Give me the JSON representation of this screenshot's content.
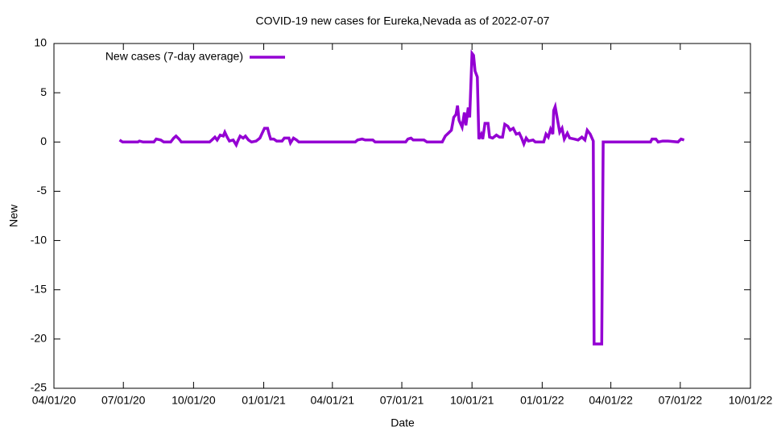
{
  "chart_data": {
    "type": "line",
    "title": "COVID-19 new cases for Eureka,Nevada as of 2022-07-07",
    "xlabel": "Date",
    "ylabel": "New",
    "legend": "top-left",
    "x": [
      "2020-06-26",
      "2020-06-30",
      "2020-07-20",
      "2020-07-22",
      "2020-07-27",
      "2020-08-10",
      "2020-08-13",
      "2020-08-19",
      "2020-08-23",
      "2020-09-01",
      "2020-09-05",
      "2020-09-08",
      "2020-09-12",
      "2020-09-15",
      "2020-10-22",
      "2020-10-25",
      "2020-10-29",
      "2020-11-01",
      "2020-11-05",
      "2020-11-09",
      "2020-11-11",
      "2020-11-14",
      "2020-11-17",
      "2020-11-22",
      "2020-11-26",
      "2020-11-28",
      "2020-12-01",
      "2020-12-05",
      "2020-12-08",
      "2020-12-12",
      "2020-12-16",
      "2020-12-22",
      "2020-12-27",
      "2020-12-30",
      "2021-01-02",
      "2021-01-06",
      "2021-01-08",
      "2021-01-10",
      "2021-01-14",
      "2021-01-18",
      "2021-01-25",
      "2021-01-28",
      "2021-02-03",
      "2021-02-05",
      "2021-02-09",
      "2021-02-13",
      "2021-02-16",
      "2021-05-01",
      "2021-05-04",
      "2021-05-10",
      "2021-05-14",
      "2021-05-24",
      "2021-05-27",
      "2021-07-06",
      "2021-07-09",
      "2021-07-13",
      "2021-07-16",
      "2021-07-30",
      "2021-08-03",
      "2021-08-23",
      "2021-08-27",
      "2021-08-31",
      "2021-09-04",
      "2021-09-07",
      "2021-09-10",
      "2021-09-12",
      "2021-09-14",
      "2021-09-18",
      "2021-09-21",
      "2021-09-23",
      "2021-09-26",
      "2021-09-28",
      "2021-10-01",
      "2021-10-03",
      "2021-10-05",
      "2021-10-08",
      "2021-10-10",
      "2021-10-13",
      "2021-10-15",
      "2021-10-18",
      "2021-10-22",
      "2021-10-24",
      "2021-10-28",
      "2021-11-02",
      "2021-11-06",
      "2021-11-10",
      "2021-11-13",
      "2021-11-17",
      "2021-11-20",
      "2021-11-24",
      "2021-11-28",
      "2021-12-02",
      "2021-12-05",
      "2021-12-08",
      "2021-12-11",
      "2021-12-14",
      "2021-12-20",
      "2021-12-23",
      "2022-01-03",
      "2022-01-06",
      "2022-01-09",
      "2022-01-12",
      "2022-01-15",
      "2022-01-16",
      "2022-01-18",
      "2022-01-21",
      "2022-01-24",
      "2022-01-27",
      "2022-01-30",
      "2022-02-03",
      "2022-02-06",
      "2022-02-12",
      "2022-02-17",
      "2022-02-22",
      "2022-02-26",
      "2022-03-01",
      "2022-03-05",
      "2022-03-09",
      "2022-03-10",
      "2022-03-20",
      "2022-03-22",
      "2022-05-23",
      "2022-05-25",
      "2022-05-30",
      "2022-06-02",
      "2022-06-08",
      "2022-06-15",
      "2022-06-28",
      "2022-07-02",
      "2022-07-06"
    ],
    "series": [
      {
        "name": "New cases (7-day average)",
        "color": "#9400d3",
        "values": [
          0.2,
          0,
          0,
          0.1,
          0,
          0,
          0.3,
          0.2,
          0,
          0,
          0.4,
          0.6,
          0.3,
          0,
          0,
          0.2,
          0.5,
          0.2,
          0.7,
          0.6,
          1.0,
          0.5,
          0.1,
          0.2,
          -0.3,
          0.1,
          0.6,
          0.4,
          0.6,
          0.2,
          0,
          0.1,
          0.4,
          0.9,
          1.4,
          1.4,
          0.8,
          0.3,
          0.3,
          0.1,
          0.1,
          0.4,
          0.4,
          -0.1,
          0.4,
          0.2,
          0,
          0,
          0.2,
          0.3,
          0.2,
          0.2,
          0,
          0,
          0.3,
          0.4,
          0.2,
          0.2,
          0,
          0,
          0.6,
          0.9,
          1.2,
          2.5,
          2.8,
          3.7,
          2.2,
          1.5,
          3.0,
          1.7,
          3.5,
          2.5,
          9.0,
          8.8,
          7.2,
          6.6,
          0.3,
          0.8,
          0.3,
          1.9,
          1.9,
          0.5,
          0.4,
          0.7,
          0.5,
          0.5,
          1.8,
          1.6,
          1.2,
          1.4,
          0.8,
          0.9,
          0.4,
          -0.2,
          0.4,
          0.1,
          0.2,
          0,
          0,
          0.8,
          0.5,
          1.3,
          0.8,
          3.2,
          3.6,
          2.3,
          1.0,
          1.4,
          0.3,
          0.9,
          0.4,
          0.3,
          0.2,
          0.5,
          0.2,
          1.2,
          0.8,
          0.1,
          -20.5,
          -20.5,
          0,
          0,
          0.3,
          0.3,
          0,
          0.1,
          0.1,
          0,
          0.3,
          0.2
        ]
      }
    ],
    "xlim": [
      "2020-04-01",
      "2022-10-01"
    ],
    "xticks": [
      {
        "value": "2020-04-01",
        "label": "04/01/20"
      },
      {
        "value": "2020-07-01",
        "label": "07/01/20"
      },
      {
        "value": "2020-10-01",
        "label": "10/01/20"
      },
      {
        "value": "2021-01-01",
        "label": "01/01/21"
      },
      {
        "value": "2021-04-01",
        "label": "04/01/21"
      },
      {
        "value": "2021-07-01",
        "label": "07/01/21"
      },
      {
        "value": "2021-10-01",
        "label": "10/01/21"
      },
      {
        "value": "2022-01-01",
        "label": "01/01/22"
      },
      {
        "value": "2022-04-01",
        "label": "04/01/22"
      },
      {
        "value": "2022-07-01",
        "label": "07/01/22"
      },
      {
        "value": "2022-10-01",
        "label": "10/01/22"
      }
    ],
    "ylim": [
      -25,
      10
    ],
    "yticks": [
      -25,
      -20,
      -15,
      -10,
      -5,
      0,
      5,
      10
    ]
  }
}
